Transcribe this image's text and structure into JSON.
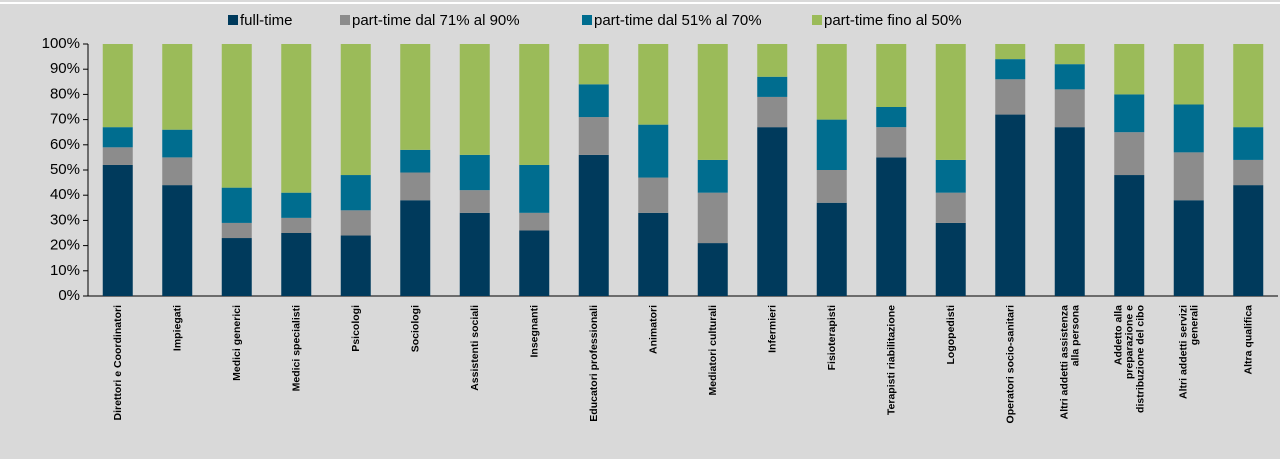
{
  "chart_data": {
    "type": "stacked_bar",
    "categories": [
      "Direttori e Coordinatori",
      "Impiegati",
      "Medici generici",
      "Medici specialisti",
      "Psicologi",
      "Sociologi",
      "Assistenti sociali",
      "Insegnanti",
      "Educatori professionali",
      "Animatori",
      "Mediatori culturali",
      "Infermieri",
      "Fisioterapisti",
      "Terapisti riabilitazione",
      "Logopedisti",
      "Operatori socio-sanitari",
      "Altri addetti assistenza alla persona",
      "Addetto alla preparazione e distribuzione del cibo",
      "Altri addetti servizi generali",
      "Altra qualifica"
    ],
    "series": [
      {
        "name": "full-time",
        "color": "#003a5c",
        "values": [
          52,
          44,
          23,
          25,
          24,
          38,
          33,
          26,
          56,
          33,
          21,
          67,
          37,
          55,
          29,
          72,
          67,
          48,
          38,
          44
        ]
      },
      {
        "name": "part-time dal 71% al 90%",
        "color": "#8c8c8c",
        "values": [
          7,
          11,
          6,
          6,
          10,
          11,
          9,
          7,
          15,
          14,
          20,
          12,
          13,
          12,
          12,
          14,
          15,
          17,
          19,
          10
        ]
      },
      {
        "name": "part-time dal 51% al 70%",
        "color": "#006d8f",
        "values": [
          8,
          11,
          14,
          10,
          14,
          9,
          14,
          19,
          13,
          21,
          13,
          8,
          20,
          8,
          13,
          8,
          10,
          15,
          19,
          13
        ]
      },
      {
        "name": "part-time fino al 50%",
        "color": "#9bbb59",
        "values": [
          33,
          34,
          57,
          59,
          52,
          42,
          44,
          48,
          16,
          32,
          46,
          13,
          30,
          25,
          46,
          6,
          8,
          20,
          24,
          33
        ]
      }
    ],
    "ylim": [
      0,
      100
    ],
    "yticks": [
      {
        "value": 0,
        "label": "0%"
      },
      {
        "value": 10,
        "label": "10%"
      },
      {
        "value": 20,
        "label": "20%"
      },
      {
        "value": 30,
        "label": "30%"
      },
      {
        "value": 40,
        "label": "40%"
      },
      {
        "value": 50,
        "label": "50%"
      },
      {
        "value": 60,
        "label": "60%"
      },
      {
        "value": 70,
        "label": "70%"
      },
      {
        "value": 80,
        "label": "80%"
      },
      {
        "value": 90,
        "label": "90%"
      },
      {
        "value": 100,
        "label": "100%"
      }
    ],
    "legend": "top"
  }
}
